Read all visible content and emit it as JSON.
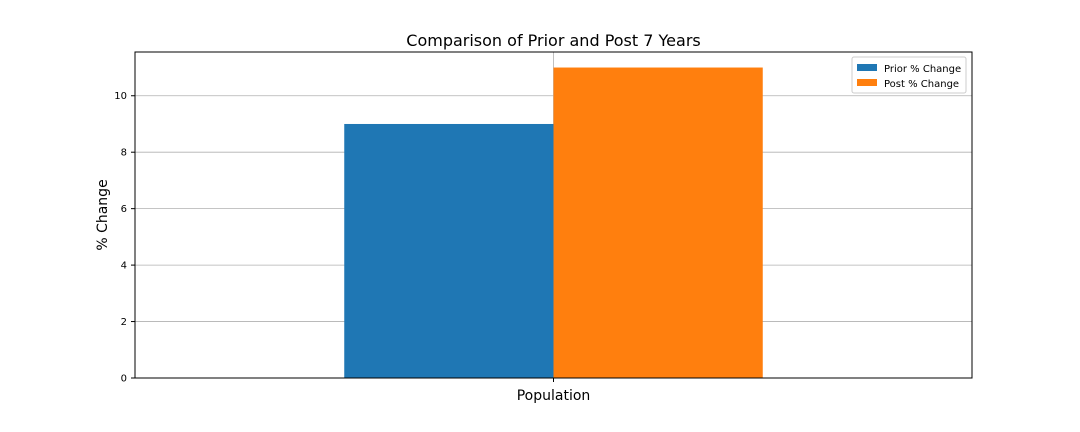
{
  "chart_data": {
    "type": "bar",
    "title": "Comparison of Prior and Post 7 Years",
    "xlabel": "Population",
    "ylabel": "% Change",
    "categories": [
      "Population"
    ],
    "series": [
      {
        "name": "Prior % Change",
        "values": [
          9.0
        ],
        "color": "#1f77b4"
      },
      {
        "name": "Post % Change",
        "values": [
          11.0
        ],
        "color": "#ff7f0e"
      }
    ],
    "ylim": [
      0,
      11.55
    ],
    "yticks": [
      0,
      2,
      4,
      6,
      8,
      10
    ],
    "grid": true,
    "legend_position": "top-right"
  }
}
